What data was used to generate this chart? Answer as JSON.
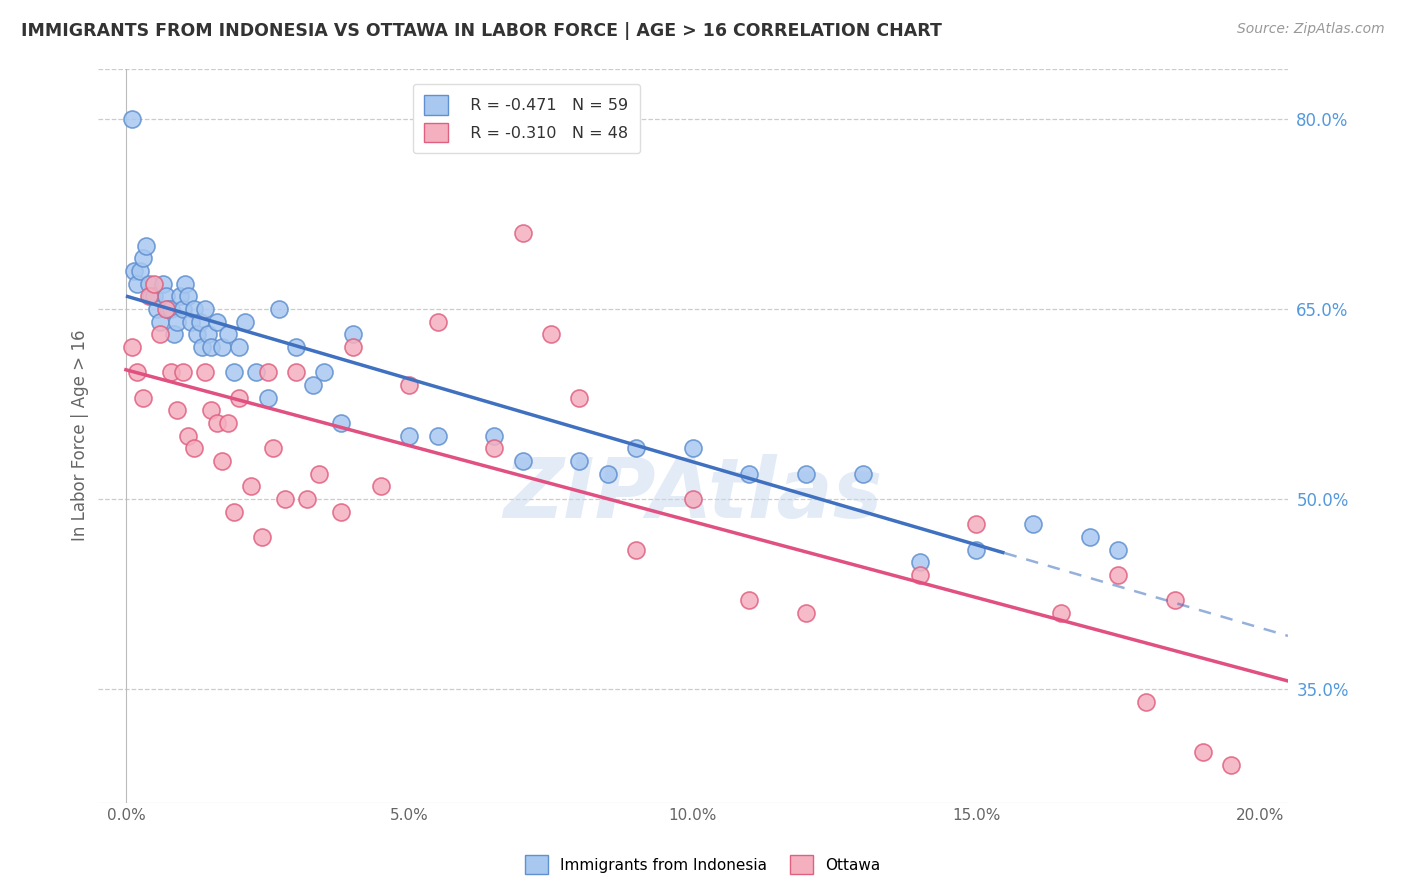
{
  "title": "IMMIGRANTS FROM INDONESIA VS OTTAWA IN LABOR FORCE | AGE > 16 CORRELATION CHART",
  "source": "Source: ZipAtlas.com",
  "ylabel": "In Labor Force | Age > 16",
  "xlabel_vals": [
    0.0,
    5.0,
    10.0,
    15.0,
    20.0
  ],
  "ylabel_vals": [
    35.0,
    50.0,
    65.0,
    80.0
  ],
  "xlim": [
    -0.5,
    20.5
  ],
  "ylim": [
    26.0,
    84.0
  ],
  "blue_label": "Immigrants from Indonesia",
  "pink_label": "Ottawa",
  "blue_R": -0.471,
  "blue_N": 59,
  "pink_R": -0.31,
  "pink_N": 48,
  "blue_color": "#a8c8f0",
  "pink_color": "#f5b0c0",
  "blue_edge_color": "#6090d0",
  "pink_edge_color": "#e06080",
  "blue_line_color": "#4070c0",
  "pink_line_color": "#e05080",
  "blue_scatter_x": [
    0.1,
    0.15,
    0.2,
    0.25,
    0.3,
    0.35,
    0.4,
    0.45,
    0.5,
    0.55,
    0.6,
    0.65,
    0.7,
    0.75,
    0.8,
    0.85,
    0.9,
    0.95,
    1.0,
    1.05,
    1.1,
    1.15,
    1.2,
    1.25,
    1.3,
    1.35,
    1.4,
    1.45,
    1.5,
    1.6,
    1.7,
    1.8,
    1.9,
    2.0,
    2.1,
    2.3,
    2.5,
    2.7,
    3.0,
    3.3,
    3.5,
    3.8,
    4.0,
    5.0,
    5.5,
    6.5,
    7.0,
    8.0,
    8.5,
    9.0,
    10.0,
    11.0,
    12.0,
    13.0,
    14.0,
    15.0,
    16.0,
    17.0,
    17.5
  ],
  "blue_scatter_y": [
    80,
    68,
    67,
    68,
    69,
    70,
    67,
    66,
    66,
    65,
    64,
    67,
    66,
    65,
    65,
    63,
    64,
    66,
    65,
    67,
    66,
    64,
    65,
    63,
    64,
    62,
    65,
    63,
    62,
    64,
    62,
    63,
    60,
    62,
    64,
    60,
    58,
    65,
    62,
    59,
    60,
    56,
    63,
    55,
    55,
    55,
    53,
    53,
    52,
    54,
    54,
    52,
    52,
    52,
    45,
    46,
    48,
    47,
    46
  ],
  "pink_scatter_x": [
    0.1,
    0.2,
    0.3,
    0.4,
    0.5,
    0.6,
    0.7,
    0.8,
    0.9,
    1.0,
    1.1,
    1.2,
    1.4,
    1.5,
    1.6,
    1.7,
    1.8,
    1.9,
    2.0,
    2.2,
    2.4,
    2.5,
    2.6,
    2.8,
    3.0,
    3.2,
    3.4,
    3.8,
    4.0,
    4.5,
    5.0,
    5.5,
    6.5,
    7.0,
    7.5,
    8.0,
    9.0,
    10.0,
    11.0,
    12.0,
    14.0,
    15.0,
    16.5,
    17.5,
    18.0,
    18.5,
    19.0,
    19.5
  ],
  "pink_scatter_y": [
    62,
    60,
    58,
    66,
    67,
    63,
    65,
    60,
    57,
    60,
    55,
    54,
    60,
    57,
    56,
    53,
    56,
    49,
    58,
    51,
    47,
    60,
    54,
    50,
    60,
    50,
    52,
    49,
    62,
    51,
    59,
    64,
    54,
    71,
    63,
    58,
    46,
    50,
    42,
    41,
    44,
    48,
    41,
    44,
    34,
    42,
    30,
    29
  ],
  "blue_line_start_x": 0.0,
  "blue_line_end_x": 15.5,
  "blue_dash_end_x": 20.5,
  "pink_line_start_x": 0.0,
  "pink_line_end_x": 20.5,
  "background_color": "#ffffff",
  "grid_color": "#cccccc",
  "title_color": "#333333",
  "right_axis_color": "#5599dd",
  "watermark_color": "#c8d8f0"
}
